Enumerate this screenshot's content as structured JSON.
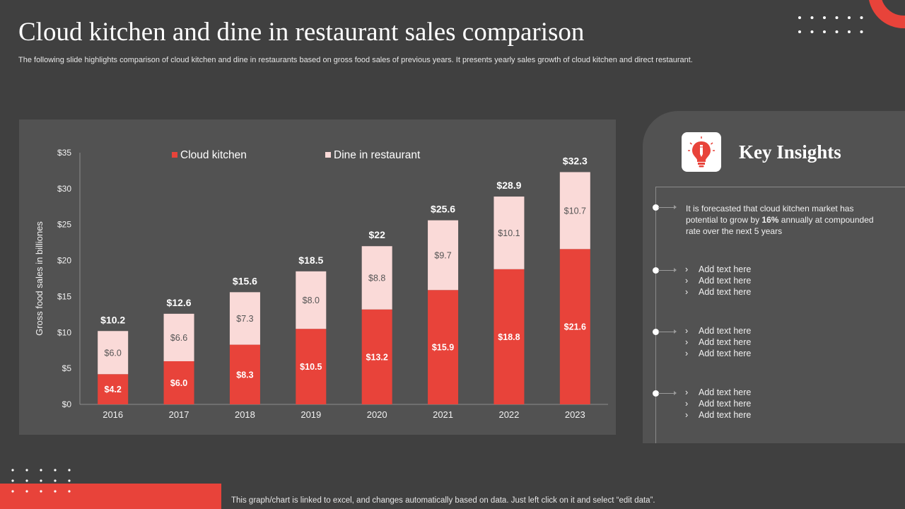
{
  "title": "Cloud kitchen and dine in restaurant sales comparison",
  "subtitle": "The following slide highlights comparison of cloud kitchen and dine in restaurants based on gross food sales of previous years. It presents yearly sales growth of cloud kitchen and direct restaurant.",
  "colors": {
    "background": "#404040",
    "panel": "#525252",
    "accent": "#e8433a",
    "light": "#fadad8"
  },
  "chart_data": {
    "type": "bar",
    "stacked": true,
    "categories": [
      "2016",
      "2017",
      "2018",
      "2019",
      "2020",
      "2021",
      "2022",
      "2023"
    ],
    "series": [
      {
        "name": "Cloud kitchen",
        "color": "#e8433a",
        "values": [
          4.2,
          6.0,
          8.3,
          10.5,
          13.2,
          15.9,
          18.8,
          21.6
        ],
        "labels": [
          "$4.2",
          "$6.0",
          "$8.3",
          "$10.5",
          "$13.2",
          "$15.9",
          "$18.8",
          "$21.6"
        ]
      },
      {
        "name": "Dine in restaurant",
        "color": "#fadad8",
        "values": [
          6.0,
          6.6,
          7.3,
          8.0,
          8.8,
          9.7,
          10.1,
          10.7
        ],
        "labels": [
          "$6.0",
          "$6.6",
          "$7.3",
          "$8.0",
          "$8.8",
          "$9.7",
          "$10.1",
          "$10.7"
        ]
      }
    ],
    "totals": [
      10.2,
      12.6,
      15.6,
      18.5,
      22,
      25.6,
      28.9,
      32.3
    ],
    "total_labels": [
      "$10.2",
      "$12.6",
      "$15.6",
      "$18.5",
      "$22",
      "$25.6",
      "$28.9",
      "$32.3"
    ],
    "ylabel": "Gross food sales  in billiones",
    "xlabel": "",
    "ylim": [
      0,
      35
    ],
    "yticks": [
      0,
      5,
      10,
      15,
      20,
      25,
      30,
      35
    ],
    "ytick_labels": [
      "$0",
      "$5",
      "$10",
      "$15",
      "$20",
      "$25",
      "$30",
      "$35"
    ],
    "legend_position": "top"
  },
  "insights": {
    "title": "Key Insights",
    "icon": "lightbulb-pen-icon",
    "main_text_before": "It is forecasted that cloud kitchen market has potential to grow  by ",
    "main_text_bold": "16%",
    "main_text_after": "  annually at compounded rate over the next 5 years",
    "groups": [
      [
        "Add text here",
        "Add text here",
        "Add text here"
      ],
      [
        "Add text here",
        "Add text here",
        "Add text here"
      ],
      [
        "Add text here",
        "Add text here",
        "Add text here"
      ]
    ],
    "chevron": "›"
  },
  "footer_note": "This graph/chart is linked to excel,  and changes automatically based on data. Just left click on it and select “edit data”."
}
